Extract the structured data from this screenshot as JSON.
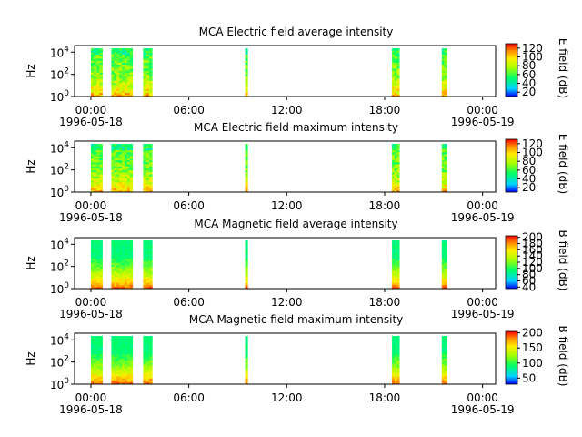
{
  "chart_data": [
    {
      "type": "heatmap",
      "title": "MCA  Electric field average intensity",
      "ylabel": "Hz",
      "y_ticks": [
        {
          "base": "10",
          "exp": "0",
          "v": 0
        },
        {
          "base": "10",
          "exp": "2",
          "v": 2
        },
        {
          "base": "10",
          "exp": "4",
          "v": 4
        }
      ],
      "ylim_log10": [
        0,
        4.6
      ],
      "x_ticks": [
        "00:00",
        "06:00",
        "12:00",
        "18:00",
        "00:00"
      ],
      "x_tick_hours": [
        0,
        6,
        12,
        18,
        24
      ],
      "date_labels": [
        "1996-05-18",
        "1996-05-19"
      ],
      "xlim_hours": [
        -1,
        24.8
      ],
      "colorbar": {
        "label": "E field (dB)",
        "ticks": [
          "120",
          "100",
          "80",
          "60",
          "40",
          "20"
        ],
        "tick_values": [
          120,
          100,
          80,
          60,
          40,
          20
        ],
        "range": [
          10,
          130
        ]
      },
      "segments_hours": [
        [
          0.0,
          0.7
        ],
        [
          1.25,
          2.55
        ],
        [
          3.2,
          3.75
        ],
        [
          9.45,
          9.6
        ],
        [
          18.45,
          18.9
        ],
        [
          21.5,
          21.8
        ]
      ],
      "profile": "electric"
    },
    {
      "type": "heatmap",
      "title": "MCA  Electric field maximum intensity",
      "ylabel": "Hz",
      "y_ticks": [
        {
          "base": "10",
          "exp": "0",
          "v": 0
        },
        {
          "base": "10",
          "exp": "2",
          "v": 2
        },
        {
          "base": "10",
          "exp": "4",
          "v": 4
        }
      ],
      "ylim_log10": [
        0,
        4.6
      ],
      "x_ticks": [
        "00:00",
        "06:00",
        "12:00",
        "18:00",
        "00:00"
      ],
      "x_tick_hours": [
        0,
        6,
        12,
        18,
        24
      ],
      "date_labels": [
        "1996-05-18",
        "1996-05-19"
      ],
      "xlim_hours": [
        -1,
        24.8
      ],
      "colorbar": {
        "label": "E field (dB)",
        "ticks": [
          "120",
          "100",
          "80",
          "60",
          "40",
          "20"
        ],
        "tick_values": [
          120,
          100,
          80,
          60,
          40,
          20
        ],
        "range": [
          10,
          130
        ]
      },
      "segments_hours": [
        [
          0.0,
          0.7
        ],
        [
          1.25,
          2.55
        ],
        [
          3.2,
          3.75
        ],
        [
          9.45,
          9.6
        ],
        [
          18.45,
          18.9
        ],
        [
          21.5,
          21.8
        ]
      ],
      "profile": "electric"
    },
    {
      "type": "heatmap",
      "title": "MCA  Magnetic field average intensity",
      "ylabel": "Hz",
      "y_ticks": [
        {
          "base": "10",
          "exp": "0",
          "v": 0
        },
        {
          "base": "10",
          "exp": "2",
          "v": 2
        },
        {
          "base": "10",
          "exp": "4",
          "v": 4
        }
      ],
      "ylim_log10": [
        0,
        4.6
      ],
      "x_ticks": [
        "00:00",
        "06:00",
        "12:00",
        "18:00",
        "00:00"
      ],
      "x_tick_hours": [
        0,
        6,
        12,
        18,
        24
      ],
      "date_labels": [
        "1996-05-18",
        "1996-05-19"
      ],
      "xlim_hours": [
        -1,
        24.8
      ],
      "colorbar": {
        "label": "B field (dB)",
        "ticks": [
          "200",
          "180",
          "160",
          "140",
          "120",
          "100",
          "80",
          "60",
          "40"
        ],
        "tick_values": [
          200,
          180,
          160,
          140,
          120,
          100,
          80,
          60,
          40
        ],
        "range": [
          35,
          205
        ]
      },
      "segments_hours": [
        [
          0.0,
          0.7
        ],
        [
          1.25,
          2.55
        ],
        [
          3.2,
          3.75
        ],
        [
          9.45,
          9.6
        ],
        [
          18.45,
          18.9
        ],
        [
          21.5,
          21.8
        ]
      ],
      "profile": "magnetic"
    },
    {
      "type": "heatmap",
      "title": "MCA  Magnetic field maximum intensity",
      "ylabel": "Hz",
      "y_ticks": [
        {
          "base": "10",
          "exp": "0",
          "v": 0
        },
        {
          "base": "10",
          "exp": "2",
          "v": 2
        },
        {
          "base": "10",
          "exp": "4",
          "v": 4
        }
      ],
      "ylim_log10": [
        0,
        4.6
      ],
      "x_ticks": [
        "00:00",
        "06:00",
        "12:00",
        "18:00",
        "00:00"
      ],
      "x_tick_hours": [
        0,
        6,
        12,
        18,
        24
      ],
      "date_labels": [
        "1996-05-18",
        "1996-05-19"
      ],
      "xlim_hours": [
        -1,
        24.8
      ],
      "colorbar": {
        "label": "B field (dB)",
        "ticks": [
          "200",
          "150",
          "100",
          "50"
        ],
        "tick_values": [
          200,
          150,
          100,
          50
        ],
        "range": [
          30,
          205
        ]
      },
      "segments_hours": [
        [
          0.0,
          0.7
        ],
        [
          1.25,
          2.55
        ],
        [
          3.2,
          3.75
        ],
        [
          9.45,
          9.6
        ],
        [
          18.45,
          18.9
        ],
        [
          21.5,
          21.8
        ]
      ],
      "profile": "magnetic"
    }
  ]
}
